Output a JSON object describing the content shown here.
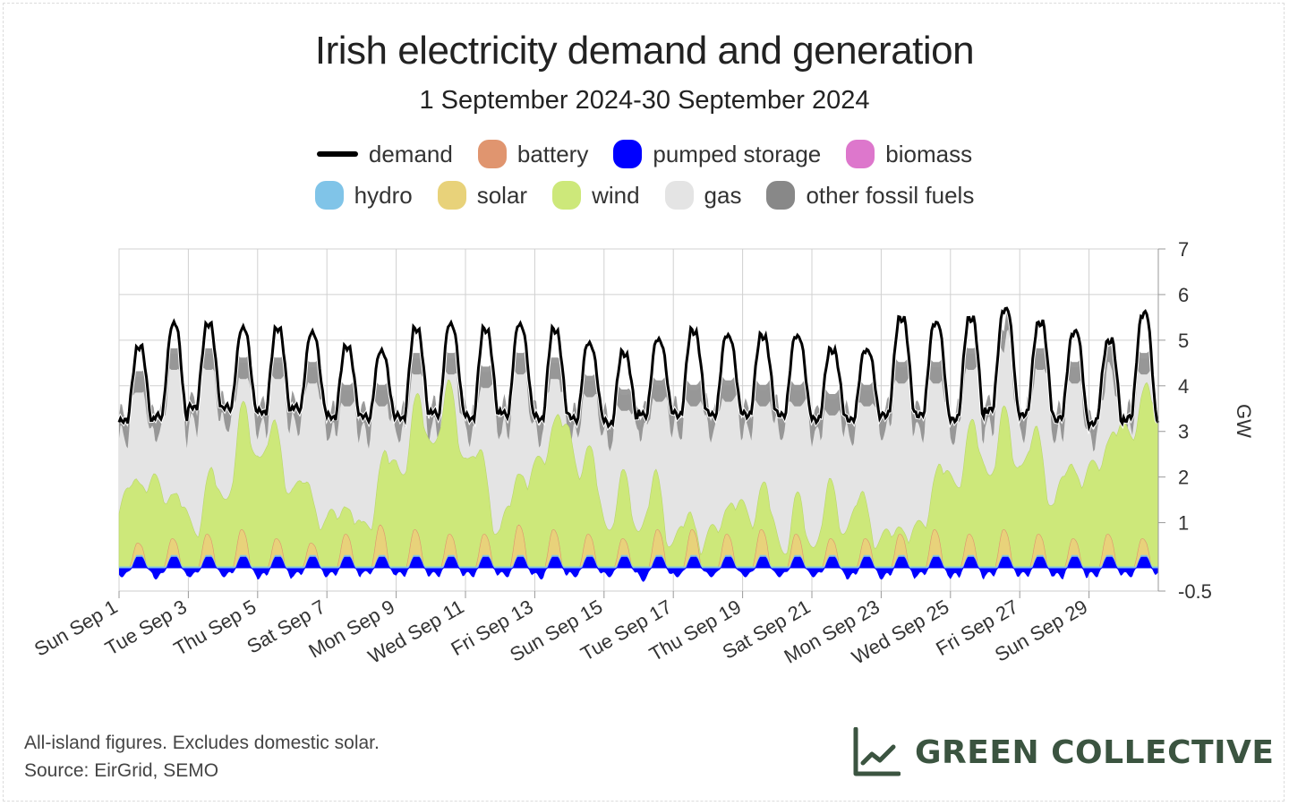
{
  "header": {
    "title": "Irish electricity demand and generation",
    "subtitle": "1 September 2024-30 September 2024"
  },
  "legend": [
    {
      "label": "demand",
      "color": "#000000",
      "kind": "line"
    },
    {
      "label": "battery",
      "color": "#e0956f",
      "kind": "area"
    },
    {
      "label": "pumped storage",
      "color": "#0000ff",
      "kind": "area"
    },
    {
      "label": "biomass",
      "color": "#dd77cc",
      "kind": "area"
    },
    {
      "label": "hydro",
      "color": "#80c4e8",
      "kind": "area"
    },
    {
      "label": "solar",
      "color": "#e8d27a",
      "kind": "area"
    },
    {
      "label": "wind",
      "color": "#cde87a",
      "kind": "area"
    },
    {
      "label": "gas",
      "color": "#e4e4e4",
      "kind": "area"
    },
    {
      "label": "other fossil fuels",
      "color": "#888888",
      "kind": "area"
    }
  ],
  "chart_data": {
    "type": "area",
    "title": "Irish electricity demand and generation",
    "subtitle": "1 September 2024-30 September 2024",
    "ylabel": "GW",
    "xlabel": "",
    "ylim": [
      -0.5,
      7
    ],
    "yticks": [
      "7",
      "6",
      "5",
      "4",
      "3",
      "2",
      "1",
      "-0.5"
    ],
    "x_start": "2024-09-01",
    "x_end": "2024-09-30",
    "xticks": [
      "Sun Sep 1",
      "Tue Sep 3",
      "Thu Sep 5",
      "Sat Sep 7",
      "Mon Sep 9",
      "Wed Sep 11",
      "Fri Sep 13",
      "Sun Sep 15",
      "Tue Sep 17",
      "Thu Sep 19",
      "Sat Sep 21",
      "Mon Sep 23",
      "Wed Sep 25",
      "Fri Sep 27",
      "Sun Sep 29"
    ],
    "grid": true,
    "legend_position": "top",
    "series_order": [
      "pumped storage",
      "battery",
      "hydro",
      "biomass",
      "solar",
      "wind",
      "gas",
      "other fossil fuels",
      "demand"
    ],
    "x": [
      "Sep 1",
      "Sep 2",
      "Sep 3",
      "Sep 4",
      "Sep 5",
      "Sep 6",
      "Sep 7",
      "Sep 8",
      "Sep 9",
      "Sep 10",
      "Sep 11",
      "Sep 12",
      "Sep 13",
      "Sep 14",
      "Sep 15",
      "Sep 16",
      "Sep 17",
      "Sep 18",
      "Sep 19",
      "Sep 20",
      "Sep 21",
      "Sep 22",
      "Sep 23",
      "Sep 24",
      "Sep 25",
      "Sep 26",
      "Sep 27",
      "Sep 28",
      "Sep 29",
      "Sep 30"
    ],
    "series": [
      {
        "name": "demand",
        "daily_peak": [
          4.8,
          5.3,
          5.3,
          5.2,
          5.2,
          5.1,
          4.8,
          4.7,
          5.2,
          5.3,
          5.2,
          5.3,
          5.2,
          4.9,
          4.7,
          5.0,
          5.2,
          5.1,
          5.1,
          5.1,
          4.8,
          4.8,
          5.5,
          5.4,
          5.5,
          5.7,
          5.4,
          5.2,
          5.0,
          5.6
        ],
        "daily_min": [
          3.2,
          3.3,
          3.5,
          3.5,
          3.4,
          3.5,
          3.3,
          3.3,
          3.3,
          3.4,
          3.3,
          3.4,
          3.3,
          3.3,
          3.2,
          3.4,
          3.4,
          3.4,
          3.4,
          3.4,
          3.3,
          3.3,
          3.4,
          3.4,
          3.3,
          3.5,
          3.4,
          3.3,
          3.2,
          3.3
        ]
      },
      {
        "name": "wind",
        "daily_mean": [
          1.2,
          1.5,
          1.2,
          1.6,
          2.6,
          2.2,
          0.8,
          0.5,
          2.6,
          2.9,
          2.6,
          1.1,
          1.8,
          2.8,
          1.5,
          0.9,
          0.7,
          0.8,
          0.9,
          0.8,
          1.0,
          0.8,
          0.7,
          0.8,
          1.6,
          2.6,
          2.7,
          1.2,
          2.2,
          3.0
        ]
      },
      {
        "name": "solar",
        "daily_peak": [
          0.3,
          0.4,
          0.5,
          0.6,
          0.4,
          0.3,
          0.5,
          0.7,
          0.6,
          0.5,
          0.5,
          0.7,
          0.6,
          0.5,
          0.4,
          0.6,
          0.6,
          0.5,
          0.6,
          0.5,
          0.4,
          0.4,
          0.5,
          0.6,
          0.5,
          0.6,
          0.5,
          0.4,
          0.5,
          0.4
        ]
      },
      {
        "name": "pumped storage",
        "daily_min": [
          -0.2,
          -0.25,
          -0.2,
          -0.2,
          -0.25,
          -0.2,
          -0.2,
          -0.15,
          -0.2,
          -0.2,
          -0.2,
          -0.2,
          -0.25,
          -0.2,
          -0.2,
          -0.3,
          -0.2,
          -0.2,
          -0.2,
          -0.2,
          -0.2,
          -0.25,
          -0.25,
          -0.2,
          -0.25,
          -0.2,
          -0.2,
          -0.25,
          -0.2,
          -0.2
        ]
      },
      {
        "name": "other fossil fuels",
        "daily_peak": [
          4.5,
          5.0,
          5.0,
          4.8,
          4.8,
          4.7,
          4.2,
          4.2,
          4.9,
          4.9,
          4.6,
          4.9,
          4.8,
          4.4,
          4.1,
          4.3,
          4.2,
          4.3,
          4.2,
          4.2,
          4.0,
          4.2,
          4.7,
          4.7,
          5.0,
          6.2,
          5.0,
          4.7,
          5.8,
          4.9
        ]
      }
    ]
  },
  "footnote": {
    "line1": "All-island figures. Excludes domestic solar.",
    "line2": "Source: EirGrid, SEMO"
  },
  "brand": {
    "name": "GREEN COLLECTIVE",
    "color": "#3b5440"
  }
}
